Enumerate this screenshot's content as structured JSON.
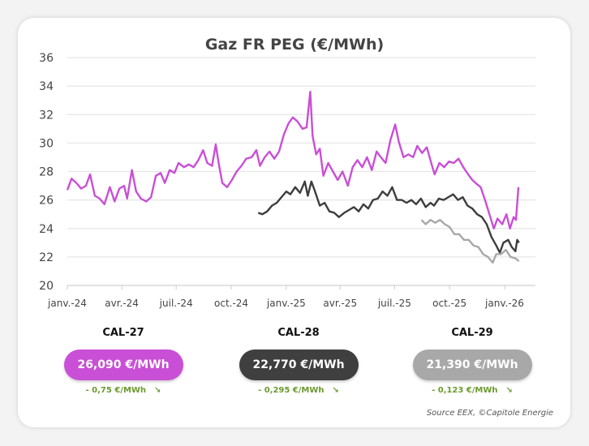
{
  "chart_data": {
    "type": "line",
    "title": "Gaz FR PEG (€/MWh)",
    "xlabel": "",
    "ylabel": "",
    "ylim": [
      20,
      36
    ],
    "yticks": [
      20,
      22,
      24,
      26,
      28,
      30,
      32,
      34,
      36
    ],
    "xticks": [
      {
        "date": "2024-01-01",
        "label": "janv.-24"
      },
      {
        "date": "2024-04-01",
        "label": "avr.-24"
      },
      {
        "date": "2024-07-01",
        "label": "juil.-24"
      },
      {
        "date": "2024-10-01",
        "label": "oct.-24"
      },
      {
        "date": "2025-01-01",
        "label": "janv.-25"
      },
      {
        "date": "2025-04-01",
        "label": "avr.-25"
      },
      {
        "date": "2025-07-01",
        "label": "juil.-25"
      },
      {
        "date": "2025-10-01",
        "label": "oct.-25"
      },
      {
        "date": "2026-01-01",
        "label": "janv.-26"
      }
    ],
    "grid": true,
    "series": [
      {
        "name": "CAL-27",
        "color": "#c94fd6",
        "points": [
          [
            "2024-01-01",
            26.7
          ],
          [
            "2024-01-08",
            27.5
          ],
          [
            "2024-01-16",
            27.2
          ],
          [
            "2024-01-24",
            26.8
          ],
          [
            "2024-02-01",
            27.0
          ],
          [
            "2024-02-08",
            27.8
          ],
          [
            "2024-02-16",
            26.3
          ],
          [
            "2024-02-24",
            26.1
          ],
          [
            "2024-03-03",
            25.7
          ],
          [
            "2024-03-12",
            26.9
          ],
          [
            "2024-03-20",
            25.9
          ],
          [
            "2024-03-28",
            26.8
          ],
          [
            "2024-04-05",
            27.0
          ],
          [
            "2024-04-10",
            26.1
          ],
          [
            "2024-04-18",
            28.1
          ],
          [
            "2024-04-25",
            26.6
          ],
          [
            "2024-05-03",
            26.1
          ],
          [
            "2024-05-12",
            25.9
          ],
          [
            "2024-05-20",
            26.2
          ],
          [
            "2024-05-28",
            27.7
          ],
          [
            "2024-06-05",
            27.9
          ],
          [
            "2024-06-12",
            27.2
          ],
          [
            "2024-06-20",
            28.1
          ],
          [
            "2024-06-28",
            27.9
          ],
          [
            "2024-07-05",
            28.6
          ],
          [
            "2024-07-14",
            28.3
          ],
          [
            "2024-07-22",
            28.5
          ],
          [
            "2024-07-30",
            28.3
          ],
          [
            "2024-08-07",
            28.8
          ],
          [
            "2024-08-15",
            29.5
          ],
          [
            "2024-08-22",
            28.6
          ],
          [
            "2024-08-30",
            28.4
          ],
          [
            "2024-09-05",
            29.9
          ],
          [
            "2024-09-10",
            28.6
          ],
          [
            "2024-09-16",
            27.2
          ],
          [
            "2024-09-24",
            26.9
          ],
          [
            "2024-10-02",
            27.4
          ],
          [
            "2024-10-10",
            28.0
          ],
          [
            "2024-10-18",
            28.4
          ],
          [
            "2024-10-26",
            28.9
          ],
          [
            "2024-11-04",
            29.0
          ],
          [
            "2024-11-12",
            29.5
          ],
          [
            "2024-11-18",
            28.4
          ],
          [
            "2024-11-26",
            29.0
          ],
          [
            "2024-12-04",
            29.4
          ],
          [
            "2024-12-12",
            28.9
          ],
          [
            "2024-12-20",
            29.4
          ],
          [
            "2024-12-28",
            30.6
          ],
          [
            "2025-01-05",
            31.4
          ],
          [
            "2025-01-12",
            31.8
          ],
          [
            "2025-01-20",
            31.5
          ],
          [
            "2025-01-28",
            31.0
          ],
          [
            "2025-02-04",
            31.1
          ],
          [
            "2025-02-10",
            33.6
          ],
          [
            "2025-02-14",
            30.5
          ],
          [
            "2025-02-20",
            29.2
          ],
          [
            "2025-02-26",
            29.6
          ],
          [
            "2025-03-04",
            27.7
          ],
          [
            "2025-03-12",
            28.6
          ],
          [
            "2025-03-20",
            28.0
          ],
          [
            "2025-03-28",
            27.4
          ],
          [
            "2025-04-05",
            28.0
          ],
          [
            "2025-04-14",
            27.0
          ],
          [
            "2025-04-22",
            28.3
          ],
          [
            "2025-04-30",
            28.8
          ],
          [
            "2025-05-08",
            28.3
          ],
          [
            "2025-05-16",
            29.0
          ],
          [
            "2025-05-24",
            28.1
          ],
          [
            "2025-06-01",
            29.4
          ],
          [
            "2025-06-08",
            29.0
          ],
          [
            "2025-06-16",
            28.6
          ],
          [
            "2025-06-24",
            30.2
          ],
          [
            "2025-07-02",
            31.3
          ],
          [
            "2025-07-08",
            30.1
          ],
          [
            "2025-07-16",
            29.0
          ],
          [
            "2025-07-24",
            29.2
          ],
          [
            "2025-08-01",
            29.0
          ],
          [
            "2025-08-08",
            29.8
          ],
          [
            "2025-08-16",
            29.3
          ],
          [
            "2025-08-24",
            29.7
          ],
          [
            "2025-09-01",
            28.5
          ],
          [
            "2025-09-06",
            27.8
          ],
          [
            "2025-09-14",
            28.6
          ],
          [
            "2025-09-22",
            28.3
          ],
          [
            "2025-09-30",
            28.7
          ],
          [
            "2025-10-08",
            28.6
          ],
          [
            "2025-10-16",
            28.9
          ],
          [
            "2025-10-24",
            28.3
          ],
          [
            "2025-11-01",
            27.8
          ],
          [
            "2025-11-08",
            27.4
          ],
          [
            "2025-11-16",
            27.1
          ],
          [
            "2025-11-22",
            26.9
          ],
          [
            "2025-11-30",
            25.9
          ],
          [
            "2025-12-08",
            24.8
          ],
          [
            "2025-12-14",
            24.0
          ],
          [
            "2025-12-20",
            24.7
          ],
          [
            "2025-12-28",
            24.3
          ],
          [
            "2026-01-04",
            25.0
          ],
          [
            "2026-01-10",
            24.0
          ],
          [
            "2026-01-16",
            24.8
          ],
          [
            "2026-01-20",
            24.6
          ],
          [
            "2026-01-24",
            26.9
          ]
        ]
      },
      {
        "name": "CAL-28",
        "color": "#3d3d3d",
        "points": [
          [
            "2024-11-15",
            25.1
          ],
          [
            "2024-11-22",
            25.0
          ],
          [
            "2024-11-30",
            25.2
          ],
          [
            "2024-12-08",
            25.6
          ],
          [
            "2024-12-16",
            25.8
          ],
          [
            "2024-12-24",
            26.2
          ],
          [
            "2025-01-01",
            26.6
          ],
          [
            "2025-01-08",
            26.4
          ],
          [
            "2025-01-16",
            26.9
          ],
          [
            "2025-01-24",
            26.5
          ],
          [
            "2025-02-01",
            27.3
          ],
          [
            "2025-02-06",
            26.3
          ],
          [
            "2025-02-12",
            27.3
          ],
          [
            "2025-02-18",
            26.6
          ],
          [
            "2025-02-26",
            25.6
          ],
          [
            "2025-03-06",
            25.8
          ],
          [
            "2025-03-14",
            25.2
          ],
          [
            "2025-03-22",
            25.1
          ],
          [
            "2025-03-30",
            24.8
          ],
          [
            "2025-04-08",
            25.1
          ],
          [
            "2025-04-16",
            25.3
          ],
          [
            "2025-04-24",
            25.5
          ],
          [
            "2025-05-02",
            25.2
          ],
          [
            "2025-05-10",
            25.7
          ],
          [
            "2025-05-18",
            25.4
          ],
          [
            "2025-05-26",
            26.0
          ],
          [
            "2025-06-03",
            26.1
          ],
          [
            "2025-06-11",
            26.6
          ],
          [
            "2025-06-19",
            26.3
          ],
          [
            "2025-06-27",
            26.9
          ],
          [
            "2025-07-05",
            26.0
          ],
          [
            "2025-07-13",
            26.0
          ],
          [
            "2025-07-21",
            25.8
          ],
          [
            "2025-07-29",
            26.0
          ],
          [
            "2025-08-06",
            25.7
          ],
          [
            "2025-08-14",
            26.1
          ],
          [
            "2025-08-22",
            25.5
          ],
          [
            "2025-08-30",
            25.8
          ],
          [
            "2025-09-05",
            25.6
          ],
          [
            "2025-09-13",
            26.1
          ],
          [
            "2025-09-21",
            26.0
          ],
          [
            "2025-09-29",
            26.2
          ],
          [
            "2025-10-07",
            26.4
          ],
          [
            "2025-10-15",
            26.0
          ],
          [
            "2025-10-23",
            26.2
          ],
          [
            "2025-10-31",
            25.6
          ],
          [
            "2025-11-08",
            25.4
          ],
          [
            "2025-11-16",
            25.0
          ],
          [
            "2025-11-24",
            24.8
          ],
          [
            "2025-12-02",
            24.3
          ],
          [
            "2025-12-10",
            23.4
          ],
          [
            "2025-12-18",
            22.8
          ],
          [
            "2025-12-24",
            22.3
          ],
          [
            "2025-12-30",
            23.0
          ],
          [
            "2026-01-07",
            23.2
          ],
          [
            "2026-01-13",
            22.7
          ],
          [
            "2026-01-19",
            22.4
          ],
          [
            "2026-01-22",
            23.2
          ],
          [
            "2026-01-25",
            23.0
          ]
        ]
      },
      {
        "name": "CAL-29",
        "color": "#a8a8a8",
        "points": [
          [
            "2025-08-15",
            24.6
          ],
          [
            "2025-08-22",
            24.3
          ],
          [
            "2025-08-30",
            24.6
          ],
          [
            "2025-09-07",
            24.4
          ],
          [
            "2025-09-15",
            24.6
          ],
          [
            "2025-09-23",
            24.3
          ],
          [
            "2025-10-01",
            24.1
          ],
          [
            "2025-10-09",
            23.6
          ],
          [
            "2025-10-17",
            23.6
          ],
          [
            "2025-10-25",
            23.2
          ],
          [
            "2025-11-02",
            23.2
          ],
          [
            "2025-11-10",
            22.8
          ],
          [
            "2025-11-18",
            22.7
          ],
          [
            "2025-11-26",
            22.2
          ],
          [
            "2025-12-04",
            22.0
          ],
          [
            "2025-12-12",
            21.6
          ],
          [
            "2025-12-18",
            22.2
          ],
          [
            "2025-12-26",
            22.2
          ],
          [
            "2026-01-03",
            22.5
          ],
          [
            "2026-01-11",
            22.0
          ],
          [
            "2026-01-19",
            21.9
          ],
          [
            "2026-01-25",
            21.7
          ]
        ]
      }
    ]
  },
  "cards": [
    {
      "label": "CAL-27",
      "price": "26,090 €/MWh",
      "change": "- 0,75 €/MWh",
      "color": "#c94fd6",
      "trend": "down-right-arrow"
    },
    {
      "label": "CAL-28",
      "price": "22,770 €/MWh",
      "change": "- 0,295 €/MWh",
      "color": "#3f3f3f",
      "trend": "down-right-arrow"
    },
    {
      "label": "CAL-29",
      "price": "21,390 €/MWh",
      "change": "- 0,123 €/MWh",
      "color": "#a8a8a8",
      "trend": "down-right-arrow"
    }
  ],
  "source": "Source EEX, ©Capitole Energie"
}
